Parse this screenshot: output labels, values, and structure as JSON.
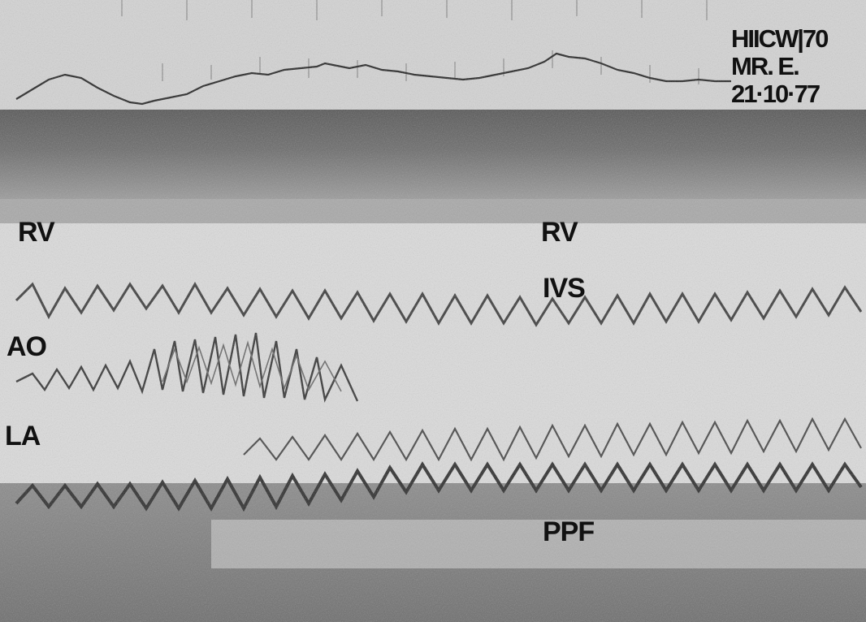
{
  "image": {
    "kind": "grayscale photograph of an M-mode echocardiogram strip",
    "colors": {
      "paper": "#e6e6e6",
      "dark_band": "#4a4a4a",
      "trace": "#1a1a1a"
    }
  },
  "header_text": {
    "line1": "HIICW|70",
    "line2": "MR. E.",
    "line3": "21·10·77"
  },
  "labels": {
    "rv_left": "RV",
    "rv_right": "RV",
    "ivs": "IVS",
    "ao": "AO",
    "la": "LA",
    "ppf": "PPF"
  }
}
